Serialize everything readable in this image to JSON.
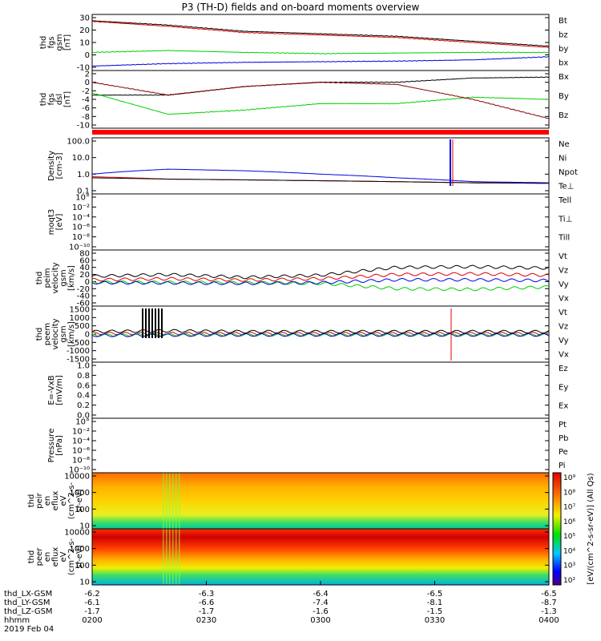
{
  "title": "P3 (TH-D) fields and on-board moments overview",
  "colors": {
    "black": "#000000",
    "red": "#e00000",
    "green": "#00d000",
    "blue": "#0000e0",
    "darkred": "#8b0000"
  },
  "chart_data": [
    {
      "panel": "fgs-gsm",
      "type": "line",
      "ylabel": [
        "thd",
        "fgs",
        "gsm",
        "[nT]"
      ],
      "ticks": [
        "30",
        "20",
        "10",
        "0",
        "-10"
      ],
      "ylim": [
        -10,
        30
      ],
      "x": [
        0,
        10,
        20,
        30,
        40,
        50,
        60
      ],
      "series": [
        {
          "name": "Bt",
          "color": "#000000",
          "values": [
            27.5,
            24.0,
            19.0,
            17.0,
            15.0,
            11.0,
            7.0
          ]
        },
        {
          "name": "bz",
          "color": "#e00000",
          "values": [
            27.0,
            23.0,
            18.0,
            16.0,
            14.0,
            10.0,
            6.0
          ]
        },
        {
          "name": "by",
          "color": "#00d000",
          "values": [
            2.0,
            3.5,
            2.0,
            1.0,
            1.5,
            2.0,
            2.0
          ]
        },
        {
          "name": "bx",
          "color": "#0000e0",
          "values": [
            -9.0,
            -7.0,
            -6.0,
            -5.5,
            -5.0,
            -4.0,
            -1.5
          ]
        }
      ]
    },
    {
      "panel": "fgs-dsl",
      "type": "line",
      "ylabel": [
        "thd",
        "fgs",
        "dsl",
        "[nT]"
      ],
      "ticks": [
        "2",
        "0",
        "-2",
        "-4",
        "-6",
        "-8",
        "-10"
      ],
      "ylim": [
        -10,
        2
      ],
      "x": [
        0,
        10,
        20,
        30,
        40,
        50,
        60
      ],
      "series": [
        {
          "name": "Bx",
          "color": "#000000",
          "values": [
            -3.0,
            -3.0,
            -1.0,
            0.0,
            0.0,
            1.0,
            1.2
          ]
        },
        {
          "name": "By",
          "color": "#00d000",
          "values": [
            -2.5,
            -7.5,
            -6.5,
            -5.0,
            -5.0,
            -3.5,
            -4.0
          ]
        },
        {
          "name": "Bz",
          "color": "#8b0000",
          "values": [
            0.0,
            -3.0,
            -1.0,
            0.0,
            -0.5,
            -4.0,
            -8.5
          ]
        }
      ]
    },
    {
      "panel": "density",
      "type": "line",
      "log": true,
      "ylabel": [
        "Density",
        "[cm-3]"
      ],
      "ticks": [
        "100.0",
        "10.0",
        "1.0",
        "0.1"
      ],
      "ylim": [
        0.1,
        100
      ],
      "x": [
        0,
        10,
        20,
        30,
        40,
        50,
        60
      ],
      "series": [
        {
          "name": "Ne",
          "color": "#e00000",
          "values": [
            0.7,
            0.5,
            0.45,
            0.4,
            0.35,
            0.3,
            0.28
          ]
        },
        {
          "name": "Ni",
          "color": "#000000",
          "values": [
            0.6,
            0.5,
            0.45,
            0.4,
            0.35,
            0.3,
            0.28
          ]
        },
        {
          "name": "Npot",
          "color": "#0000e0",
          "values": [
            1.0,
            2.0,
            1.6,
            1.0,
            0.6,
            0.35,
            0.3
          ]
        }
      ],
      "legend_extra": [
        {
          "name": "Te⊥",
          "color": "#e00000"
        }
      ]
    },
    {
      "panel": "moqt3",
      "type": "line",
      "log": true,
      "ylabel": [
        "moqt3",
        "[eV]"
      ],
      "ticks": [
        "10°",
        "10⁻²",
        "10⁻⁴",
        "10⁻⁶",
        "10⁻⁸",
        "10⁻¹⁰"
      ],
      "series": [
        {
          "name": "Tell",
          "color": "#000000"
        },
        {
          "name": "Ti⊥",
          "color": "#0000e0"
        },
        {
          "name": "Till",
          "color": "#00d000"
        }
      ]
    },
    {
      "panel": "peim-velocity",
      "type": "line",
      "ylabel": [
        "thd",
        "peim",
        "velocity",
        "gsm",
        "[km/s]"
      ],
      "ticks": [
        "80",
        "60",
        "40",
        "20",
        "0",
        "-20",
        "-40",
        "-60"
      ],
      "ylim": [
        -60,
        80
      ],
      "x": [
        0,
        10,
        20,
        30,
        40,
        50,
        60
      ],
      "series": [
        {
          "name": "Vt",
          "color": "#000000",
          "values": [
            15,
            20,
            12,
            18,
            40,
            42,
            38
          ]
        },
        {
          "name": "Vz",
          "color": "#e00000",
          "values": [
            5,
            8,
            4,
            8,
            20,
            22,
            18
          ]
        },
        {
          "name": "Vy",
          "color": "#00d000",
          "values": [
            -2,
            -2,
            -3,
            -5,
            -20,
            -22,
            -15
          ]
        },
        {
          "name": "Vx",
          "color": "#0000e0",
          "values": [
            -3,
            -4,
            -5,
            -3,
            5,
            5,
            3
          ]
        }
      ]
    },
    {
      "panel": "peem-velocity",
      "type": "line",
      "ylabel": [
        "thd",
        "peem",
        "velocity",
        "gsm",
        "[km/s]"
      ],
      "ticks": [
        "1500",
        "1000",
        "500",
        "0",
        "-500",
        "-1000",
        "-1500"
      ],
      "ylim": [
        -1500,
        1500
      ],
      "x": [
        0,
        10,
        20,
        30,
        40,
        50,
        60
      ],
      "series": [
        {
          "name": "Vt",
          "color": "#000000",
          "values": [
            150,
            200,
            150,
            150,
            150,
            150,
            150
          ]
        },
        {
          "name": "Vz",
          "color": "#e00000",
          "values": [
            50,
            30,
            40,
            40,
            40,
            40,
            40
          ]
        },
        {
          "name": "Vy",
          "color": "#00d000",
          "values": [
            -50,
            -40,
            -40,
            -40,
            -40,
            -40,
            -40
          ]
        },
        {
          "name": "Vx",
          "color": "#0000e0",
          "values": [
            -80,
            -60,
            -50,
            -50,
            -50,
            -50,
            -50
          ]
        }
      ]
    },
    {
      "panel": "e-vxb",
      "type": "line",
      "ylabel": [
        "E=-VxB",
        "[mV/m]"
      ],
      "ticks": [
        "1.0",
        "0.8",
        "0.6",
        "0.4",
        "0.2",
        "0.0"
      ],
      "ylim": [
        0,
        1
      ],
      "series": [
        {
          "name": "Ez",
          "color": "#e00000"
        },
        {
          "name": "Ey",
          "color": "#00d000"
        },
        {
          "name": "Ex",
          "color": "#0000e0"
        }
      ]
    },
    {
      "panel": "pressure",
      "type": "line",
      "log": true,
      "ylabel": [
        "Pressure",
        "[nPa]"
      ],
      "ticks": [
        "10°",
        "10⁻²",
        "10⁻⁴",
        "10⁻⁶",
        "10⁻⁸",
        "10⁻¹⁰"
      ],
      "series": [
        {
          "name": "Pt",
          "color": "#000000"
        },
        {
          "name": "Pb",
          "color": "#e00000"
        },
        {
          "name": "Pe",
          "color": "#00d000"
        },
        {
          "name": "Pi",
          "color": "#0000e0"
        }
      ]
    },
    {
      "panel": "peir-en-eflux",
      "type": "heatmap",
      "log": true,
      "ylabel": [
        "thd",
        "peir",
        "en",
        "eflux",
        "eV",
        "(cm^2-s-",
        "sr-eV)"
      ],
      "ticks": [
        "10000",
        "1000",
        "100",
        "10"
      ],
      "ylim": [
        10,
        20000
      ]
    },
    {
      "panel": "peer-en-eflux",
      "type": "heatmap",
      "log": true,
      "ylabel": [
        "thd",
        "peer",
        "en",
        "eflux",
        "eV",
        "(cm^2-s-",
        "sr-eV)"
      ],
      "ticks": [
        "10000",
        "1000",
        "100",
        "10"
      ],
      "ylim": [
        10,
        20000
      ]
    }
  ],
  "colorbar": {
    "ticks": [
      "10⁹",
      "10⁸",
      "10⁷",
      "10⁶",
      "10⁵",
      "10⁴",
      "10³",
      "10²"
    ],
    "label": "[eV/(cm^2-s-sr-eV)] (All Qs)"
  },
  "xaxis": {
    "rows": [
      {
        "name": "thd_LX-GSM",
        "values": [
          "-6.2",
          "-6.3",
          "-6.4",
          "-6.5",
          "-6.5"
        ]
      },
      {
        "name": "thd_LY-GSM",
        "values": [
          "-6.1",
          "-6.6",
          "-7.4",
          "-8.1",
          "-8.7"
        ]
      },
      {
        "name": "thd_LZ-GSM",
        "values": [
          "-1.7",
          "-1.7",
          "-1.6",
          "-1.5",
          "-1.3"
        ]
      },
      {
        "name": "hhmm",
        "values": [
          "0200",
          "0230",
          "0300",
          "0330",
          "0400"
        ]
      }
    ],
    "date": "2019 Feb 04"
  }
}
